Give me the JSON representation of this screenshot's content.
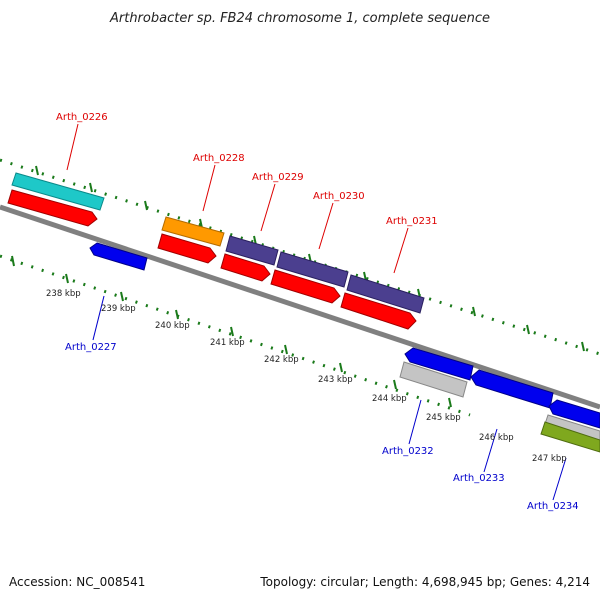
{
  "title": "Arthrobacter sp. FB24 chromosome 1, complete sequence",
  "footer": {
    "accession": "Accession: NC_008541",
    "topology": "Topology: circular; Length: 4,698,945 bp; Genes: 4,214"
  },
  "colors": {
    "forward_label": "#dd0000",
    "reverse_label": "#0000cc",
    "backbone": "#808080",
    "tick": "#1a7a1a"
  },
  "kbp_labels": [
    "238 kbp",
    "239 kbp",
    "240 kbp",
    "241 kbp",
    "242 kbp",
    "243 kbp",
    "244 kbp",
    "245 kbp",
    "246 kbp",
    "247 kbp"
  ],
  "gene_labels_forward": [
    "Arth_0226",
    "Arth_0228",
    "Arth_0229",
    "Arth_0230",
    "Arth_0231"
  ],
  "gene_labels_reverse": [
    "Arth_0227",
    "Arth_0232",
    "Arth_0233",
    "Arth_0234"
  ]
}
